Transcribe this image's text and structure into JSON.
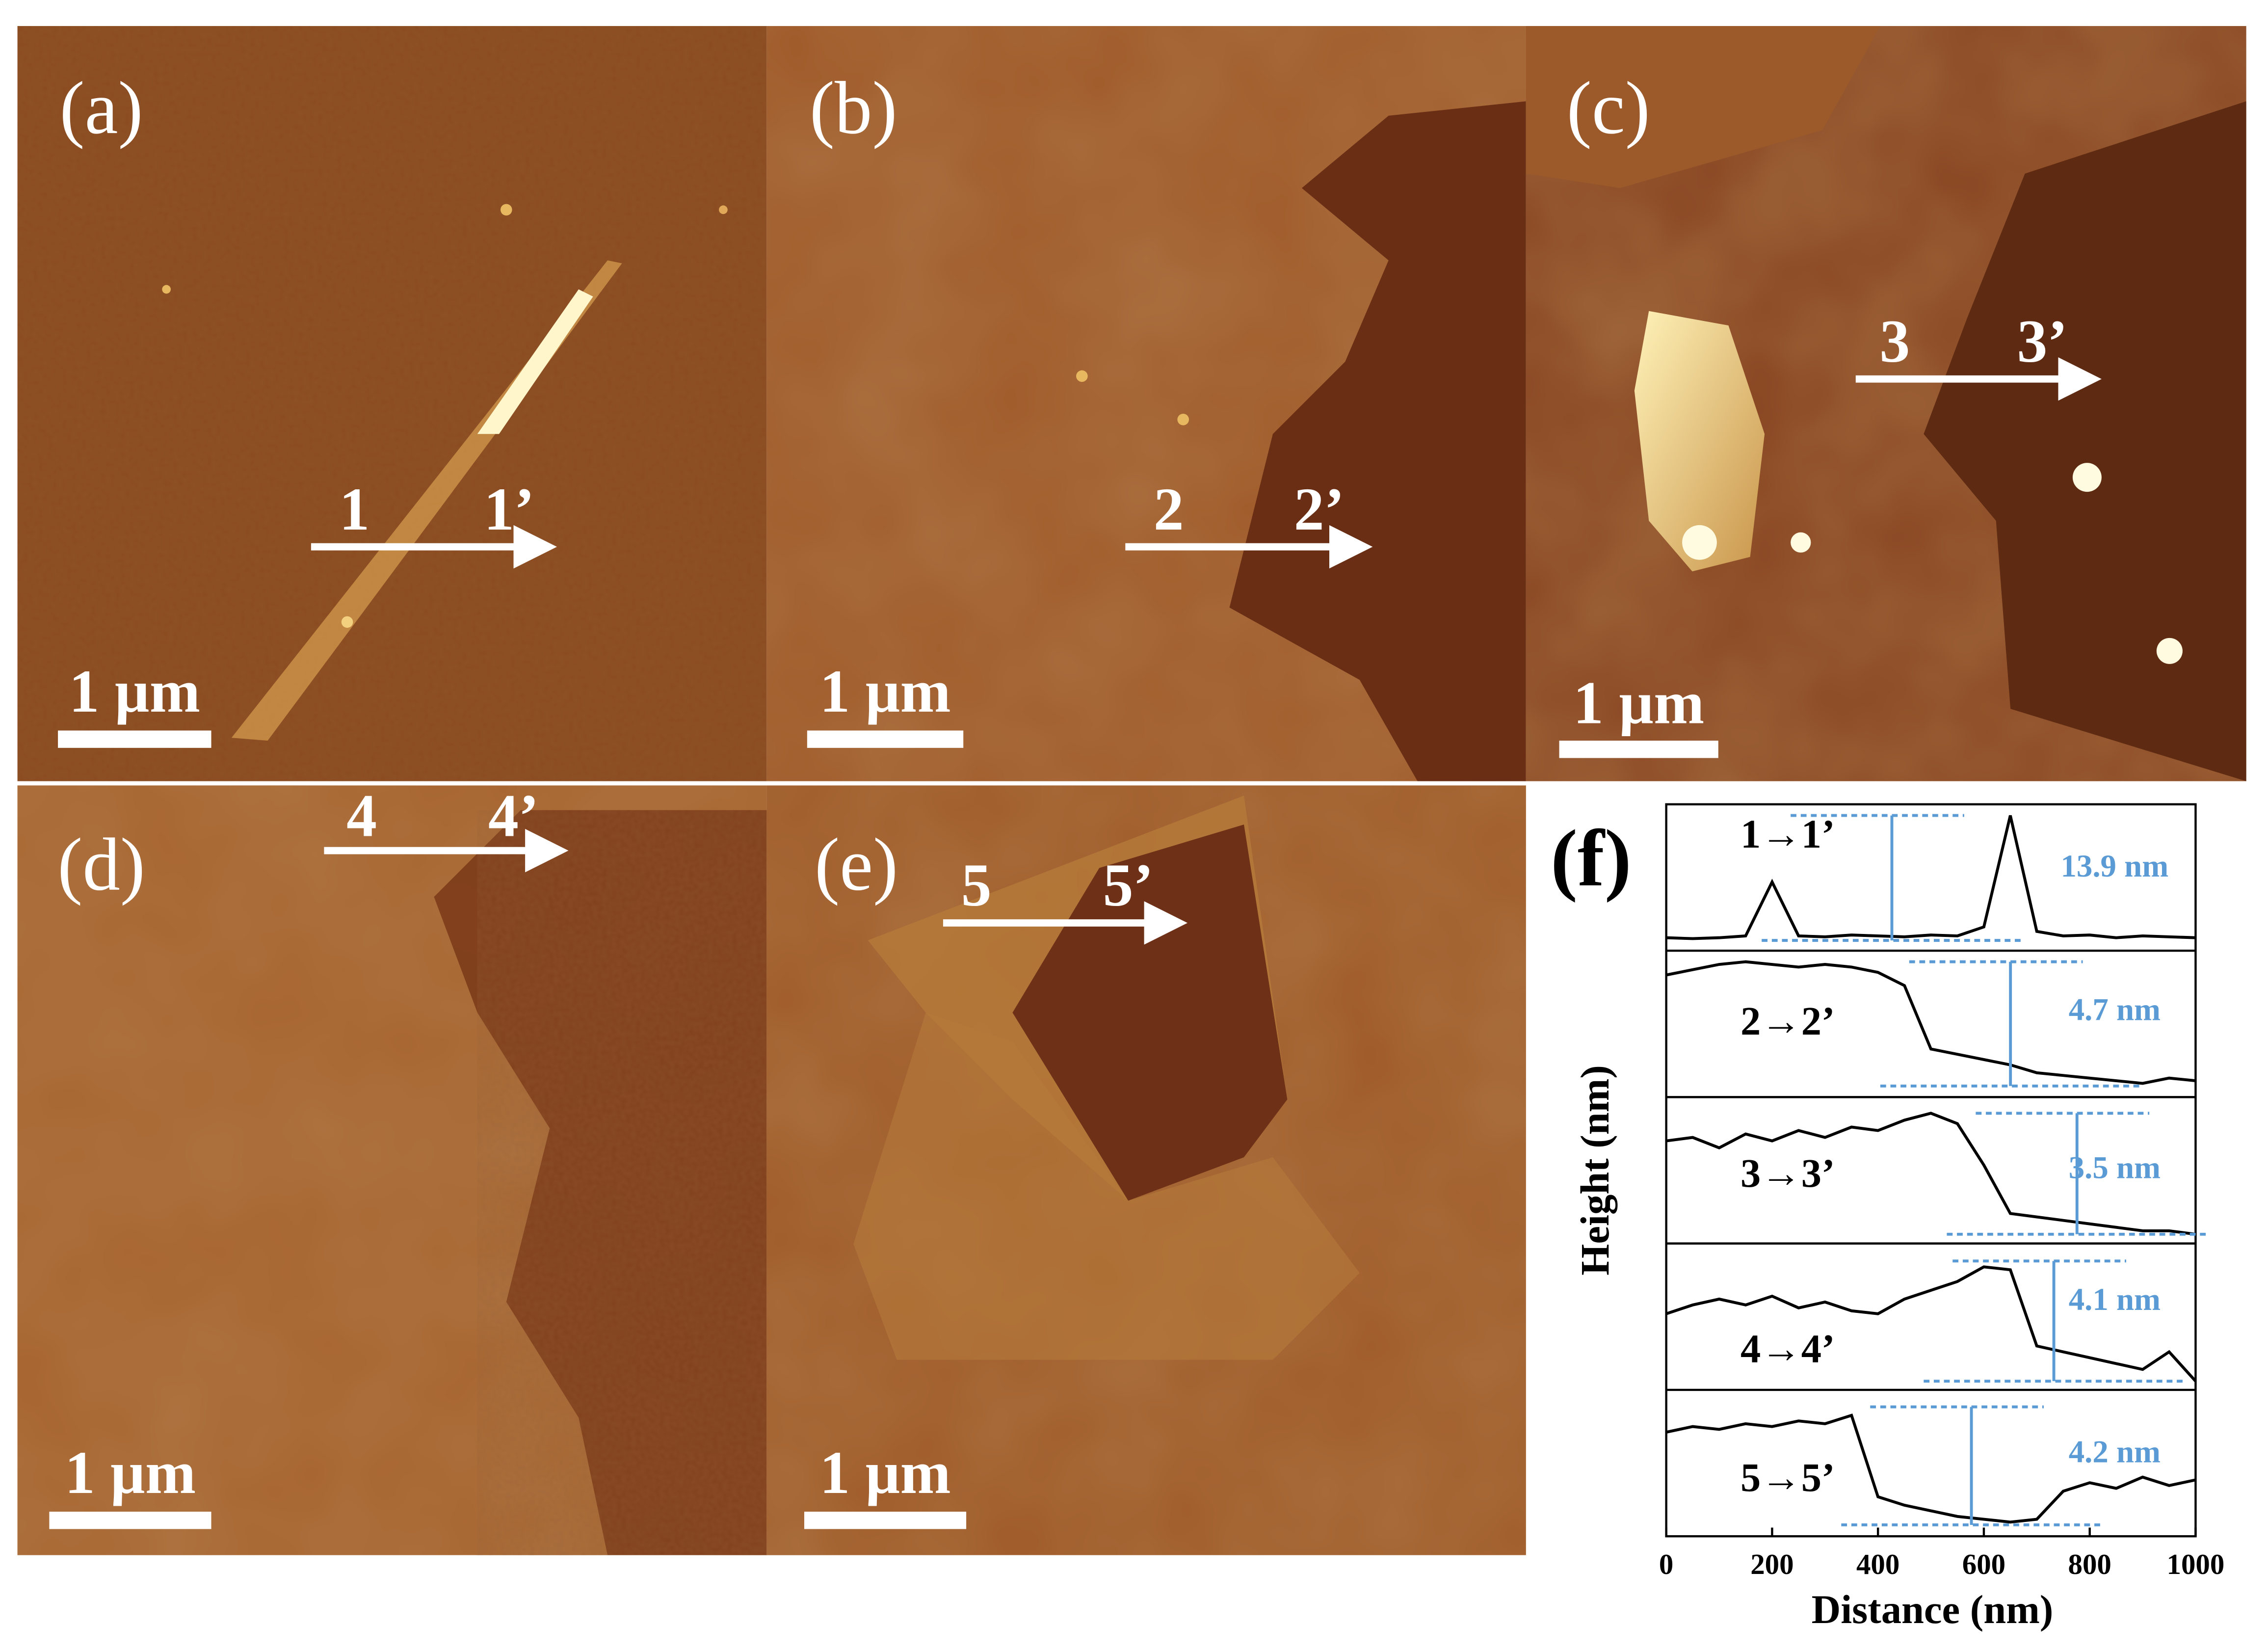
{
  "panels": [
    {
      "label": "(a)",
      "start": "1",
      "end": "1’",
      "scale_bar": "1 µm"
    },
    {
      "label": "(b)",
      "start": "2",
      "end": "2’",
      "scale_bar": "1 µm"
    },
    {
      "label": "(c)",
      "start": "3",
      "end": "3’",
      "scale_bar": "1 µm"
    },
    {
      "label": "(d)",
      "start": "4",
      "end": "4’",
      "scale_bar": "1 µm"
    },
    {
      "label": "(e)",
      "start": "5",
      "end": "5’",
      "scale_bar": "1 µm"
    }
  ],
  "chart_data": {
    "type": "line",
    "label": "(f)",
    "x_label": "Distance (nm)",
    "y_label": "Height (nm)",
    "xlim": [
      0,
      1000
    ],
    "xticks": [
      0,
      200,
      400,
      600,
      800,
      1000
    ],
    "x": [
      0,
      50,
      100,
      150,
      200,
      250,
      300,
      350,
      400,
      450,
      500,
      550,
      600,
      650,
      700,
      750,
      800,
      850,
      900,
      950,
      1000
    ],
    "annotation_color": "#5b9bd5",
    "series": [
      {
        "name": "1→1’",
        "color": "#000000",
        "ylim": [
          -0.5,
          14.5
        ],
        "step": 13.9,
        "step_label": "13.9 nm",
        "values": [
          0.3,
          0.2,
          0.3,
          0.5,
          6.5,
          0.5,
          0.4,
          0.6,
          0.5,
          0.4,
          0.6,
          0.5,
          1.5,
          13.9,
          1.0,
          0.5,
          0.6,
          0.3,
          0.5,
          0.4,
          0.3
        ]
      },
      {
        "name": "2→2’",
        "color": "#000000",
        "ylim": [
          -0.2,
          4.9
        ],
        "step": 4.7,
        "step_label": "4.7 nm",
        "values": [
          4.2,
          4.4,
          4.6,
          4.7,
          4.6,
          4.5,
          4.6,
          4.5,
          4.3,
          3.8,
          1.4,
          1.2,
          1.0,
          0.8,
          0.5,
          0.4,
          0.3,
          0.2,
          0.1,
          0.3,
          0.2
        ]
      },
      {
        "name": "3→3’",
        "color": "#000000",
        "ylim": [
          -0.1,
          3.8
        ],
        "step": 3.5,
        "step_label": "3.5 nm",
        "values": [
          2.7,
          2.8,
          2.5,
          2.9,
          2.7,
          3.0,
          2.8,
          3.1,
          3.0,
          3.3,
          3.5,
          3.2,
          2.0,
          0.6,
          0.5,
          0.4,
          0.3,
          0.2,
          0.1,
          0.1,
          0.0
        ]
      },
      {
        "name": "4→4’",
        "color": "#000000",
        "ylim": [
          -0.1,
          4.5
        ],
        "step": 4.1,
        "step_label": "4.1 nm",
        "values": [
          2.3,
          2.6,
          2.8,
          2.6,
          2.9,
          2.5,
          2.7,
          2.4,
          2.3,
          2.8,
          3.1,
          3.4,
          3.9,
          3.8,
          1.2,
          1.0,
          0.8,
          0.6,
          0.4,
          1.0,
          0.0
        ]
      },
      {
        "name": "5→5’",
        "color": "#000000",
        "ylim": [
          -0.2,
          4.6
        ],
        "step": 4.2,
        "step_label": "4.2 nm",
        "values": [
          3.3,
          3.5,
          3.4,
          3.6,
          3.5,
          3.7,
          3.6,
          3.9,
          1.0,
          0.7,
          0.5,
          0.3,
          0.2,
          0.1,
          0.2,
          1.2,
          1.5,
          1.3,
          1.7,
          1.4,
          1.6
        ]
      }
    ]
  }
}
